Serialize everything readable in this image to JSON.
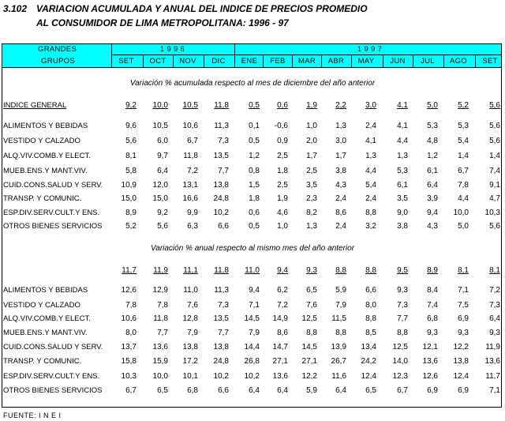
{
  "header": {
    "number": "3.102",
    "title": [
      "VARIACION ACUMULADA Y ANUAL DEL INDICE DE PRECIOS PROMEDIO",
      "AL CONSUMIDOR DE LIMA METROPOLITANA: 1996 - 97"
    ]
  },
  "table": {
    "row_header": [
      "GRANDES",
      "GRUPOS"
    ],
    "years": [
      {
        "label": "1 9 9 6",
        "months": [
          "SET",
          "OCT",
          "NOV",
          "DIC"
        ]
      },
      {
        "label": "1 9 9 7",
        "months": [
          "ENE",
          "FEB",
          "MAR",
          "ABR",
          "MAY",
          "JUN",
          "JUL",
          "AGO",
          "SET"
        ]
      }
    ],
    "sections": [
      {
        "caption": "Variación % acumulada respecto al mes de diciembre del año anterior",
        "rows": [
          {
            "label": "INDICE GENERAL",
            "values": [
              "9,2",
              "10,0",
              "10,5",
              "11,8",
              "0,5",
              "0,6",
              "1,9",
              "2,2",
              "3,0",
              "4,1",
              "5,0",
              "5,2",
              "5,6"
            ]
          },
          {
            "label": "ALIMENTOS Y BEBIDAS",
            "values": [
              "9,6",
              "10,5",
              "10,6",
              "11,3",
              "0,1",
              "-0,6",
              "1,0",
              "1,3",
              "2,4",
              "4,1",
              "5,3",
              "5,3",
              "5,6"
            ]
          },
          {
            "label": "VESTIDO Y CALZADO",
            "values": [
              "5,6",
              "6,0",
              "6,7",
              "7,3",
              "0,5",
              "0,9",
              "2,0",
              "3,0",
              "4,1",
              "4,4",
              "4,8",
              "5,4",
              "5,6"
            ]
          },
          {
            "label": "ALQ.VIV.COMB.Y ELECT.",
            "values": [
              "8,1",
              "9,7",
              "11,8",
              "13,5",
              "1,2",
              "2,5",
              "1,7",
              "1,7",
              "1,3",
              "1,3",
              "1,2",
              "1,4",
              "1,4"
            ]
          },
          {
            "label": "MUEB.ENS.Y MANT.VIV.",
            "values": [
              "5,8",
              "6,4",
              "7,2",
              "7,7",
              "0,8",
              "1,8",
              "2,5",
              "3,8",
              "4,4",
              "5,3",
              "6,1",
              "6,7",
              "7,4"
            ]
          },
          {
            "label": "CUID.CONS.SALUD Y SERV.",
            "values": [
              "10,9",
              "12,0",
              "13,1",
              "13,8",
              "1,5",
              "2,5",
              "3,5",
              "4,3",
              "5,4",
              "6,1",
              "6,4",
              "7,8",
              "9,1"
            ]
          },
          {
            "label": "TRANSP. Y COMUNIC.",
            "values": [
              "15,0",
              "15,0",
              "16,6",
              "24,8",
              "1,8",
              "1,9",
              "2,3",
              "2,4",
              "2,4",
              "3,5",
              "3,9",
              "4,4",
              "4,7"
            ]
          },
          {
            "label": "ESP.DIV.SERV.CULT.Y ENS.",
            "values": [
              "8,9",
              "9,2",
              "9,9",
              "10,2",
              "0,6",
              "4,6",
              "8,2",
              "8,6",
              "8,8",
              "9,0",
              "9,4",
              "10,0",
              "10,3"
            ]
          },
          {
            "label": "OTROS BIENES SERVICIOS",
            "values": [
              "5,2",
              "5,6",
              "6,3",
              "6,6",
              "0,5",
              "1,0",
              "1,3",
              "2,4",
              "3,2",
              "3,8",
              "4,3",
              "5,0",
              "5,6"
            ]
          }
        ]
      },
      {
        "caption": "Variación % anual respecto al mismo mes del año anterior",
        "rows": [
          {
            "values": [
              "11,7",
              "11,9",
              "11,1",
              "11,8",
              "11,0",
              "9,4",
              "9,3",
              "8,8",
              "8,8",
              "9,5",
              "8,9",
              "8,1",
              "8,1"
            ]
          },
          {
            "label": "ALIMENTOS Y BEBIDAS",
            "values": [
              "12,6",
              "12,9",
              "11,0",
              "11,3",
              "9,4",
              "6,2",
              "6,5",
              "5,9",
              "6,6",
              "9,3",
              "8,4",
              "7,1",
              "7,2"
            ]
          },
          {
            "label": "VESTIDO Y CALZADO",
            "values": [
              "7,8",
              "7,8",
              "7,6",
              "7,3",
              "7,1",
              "7,2",
              "7,6",
              "7,9",
              "8,0",
              "7,3",
              "7,4",
              "7,5",
              "7,3"
            ]
          },
          {
            "label": "ALQ.VIV.COMB.Y ELECT.",
            "values": [
              "10,6",
              "11,8",
              "12,8",
              "13,5",
              "14,5",
              "14,9",
              "12,5",
              "11,5",
              "8,8",
              "7,7",
              "6,8",
              "6,9",
              "6,4"
            ]
          },
          {
            "label": "MUEB.ENS.Y MANT.VIV.",
            "values": [
              "8,0",
              "7,7",
              "7,9",
              "7,7",
              "7,9",
              "8,6",
              "8,8",
              "8,8",
              "8,5",
              "8,8",
              "9,3",
              "9,3",
              "9,3"
            ]
          },
          {
            "label": "CUID.CONS.SALUD Y SERV.",
            "values": [
              "13,7",
              "13,6",
              "13,8",
              "13,8",
              "14,4",
              "14,7",
              "14,5",
              "13,9",
              "13,4",
              "12,5",
              "12,1",
              "12,2",
              "11,9"
            ]
          },
          {
            "label": "TRANSP. Y COMUNIC.",
            "values": [
              "15,8",
              "15,9",
              "17,2",
              "24,8",
              "26,8",
              "27,1",
              "27,1",
              "26,7",
              "24,2",
              "14,0",
              "13,6",
              "13,8",
              "13,6"
            ]
          },
          {
            "label": "ESP.DIV.SERV.CULT.Y ENS.",
            "values": [
              "10,3",
              "10,0",
              "10,1",
              "10,2",
              "10,2",
              "13,6",
              "12,2",
              "11,6",
              "12,4",
              "12,3",
              "12,6",
              "12,4",
              "11,7"
            ]
          },
          {
            "label": "OTROS BIENES SERVICIOS",
            "values": [
              "6,7",
              "6,5",
              "6,8",
              "6,6",
              "6,4",
              "6,4",
              "5,9",
              "6,4",
              "6,5",
              "6,7",
              "6,9",
              "6,9",
              "7,1"
            ]
          }
        ]
      }
    ]
  },
  "footer": {
    "source": "FUENTE: I N E I"
  }
}
